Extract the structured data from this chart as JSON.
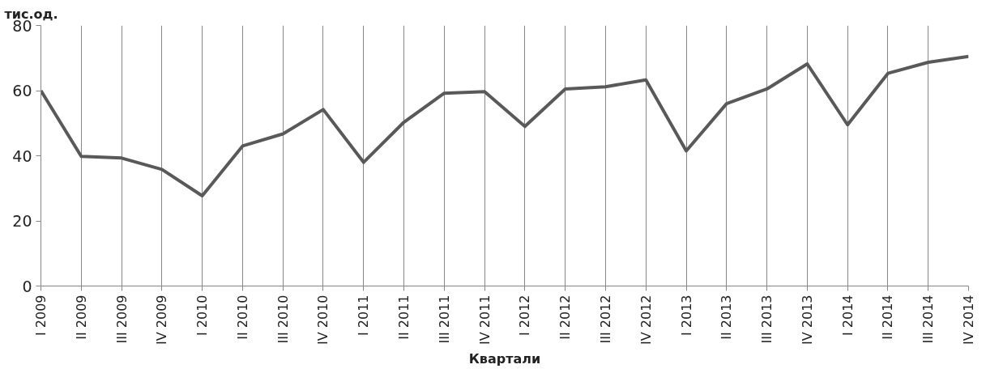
{
  "chart_data": {
    "type": "line",
    "ylabel": "тис.од.",
    "xlabel": "Квартали",
    "categories": [
      "I 2009",
      "II 2009",
      "III 2009",
      "IV 2009",
      "I 2010",
      "II 2010",
      "III 2010",
      "IV 2010",
      "I 2011",
      "II 2011",
      "III 2011",
      "IV 2011",
      "I 2012",
      "II 2012",
      "III 2012",
      "IV 2012",
      "I 2013",
      "II 2013",
      "III 2013",
      "IV 2013",
      "I 2014",
      "II 2014",
      "III 2014",
      "IV 2014"
    ],
    "series": [
      {
        "color": "#595959",
        "values": [
          60,
          39.8,
          39.3,
          35.8,
          27.7,
          43,
          46.7,
          54.2,
          38,
          50.3,
          59.2,
          59.7,
          49,
          60.5,
          61.2,
          63.3,
          41.5,
          56,
          60.5,
          68.2,
          49.5,
          65.3,
          68.7,
          70.5
        ]
      }
    ],
    "ylim": [
      0,
      80
    ],
    "yticks": [
      0,
      20,
      40,
      60,
      80
    ],
    "grid": "x",
    "marker": "none",
    "line_style": "solid"
  }
}
